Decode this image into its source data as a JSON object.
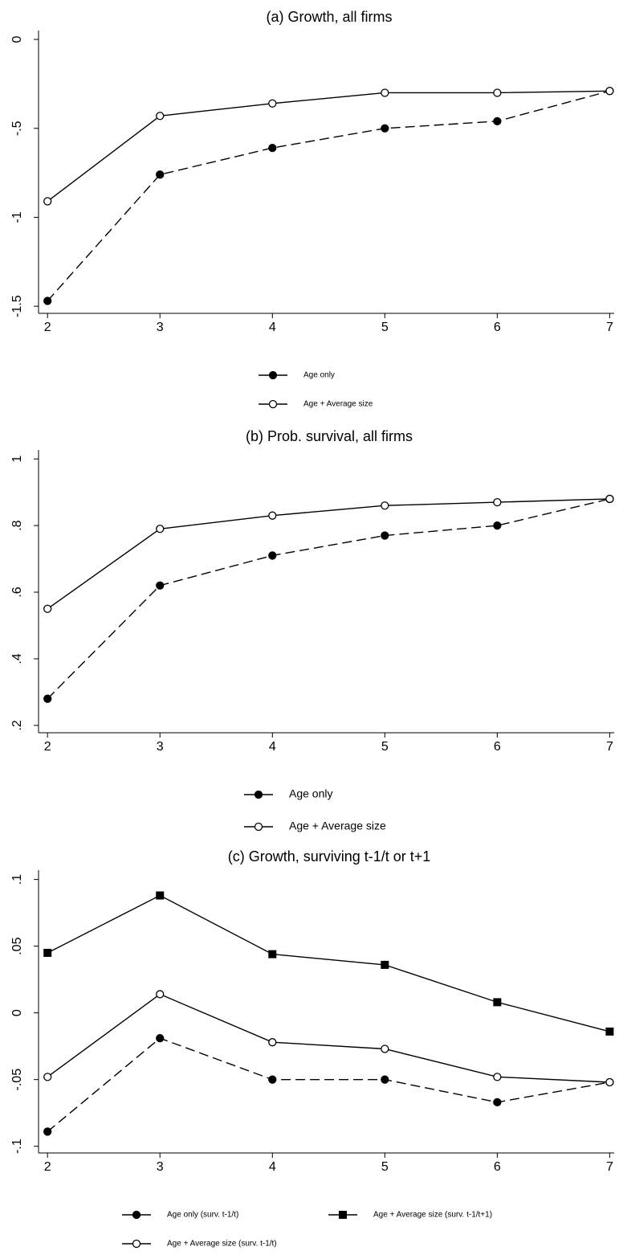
{
  "chart_data": [
    {
      "type": "line",
      "title": "(a) Growth, all firms",
      "x": [
        2,
        3,
        4,
        5,
        6,
        7
      ],
      "xlim": [
        1.92,
        7.04
      ],
      "xticks": [
        2,
        3,
        4,
        5,
        6,
        7
      ],
      "ylim": [
        -1.54,
        0.05
      ],
      "yticks": [
        0,
        {
          "value": -0.5,
          "label": "-.5"
        },
        -1,
        {
          "value": -1.5,
          "label": "-1.5"
        }
      ],
      "series": [
        {
          "name": "Age only",
          "color": "#000000",
          "dashed": true,
          "marker": "circle-filled",
          "values": [
            -1.47,
            -0.76,
            -0.61,
            -0.5,
            -0.46,
            -0.29
          ]
        },
        {
          "name": "Age + Average size",
          "color": "#000000",
          "dashed": false,
          "marker": "circle-hollow",
          "values": [
            -0.91,
            -0.43,
            -0.36,
            -0.3,
            -0.3,
            -0.29
          ]
        }
      ]
    },
    {
      "type": "line",
      "title": "(b) Prob. survival, all firms",
      "x": [
        2,
        3,
        4,
        5,
        6,
        7
      ],
      "xlim": [
        1.92,
        7.04
      ],
      "xticks": [
        2,
        3,
        4,
        5,
        6,
        7
      ],
      "ylim": [
        0.178,
        1.027
      ],
      "yticks": [
        {
          "value": 0.2,
          "label": ".2"
        },
        {
          "value": 0.4,
          "label": ".4"
        },
        {
          "value": 0.6,
          "label": ".6"
        },
        {
          "value": 0.8,
          "label": ".8"
        },
        1
      ],
      "series": [
        {
          "name": "Age only",
          "color": "#000000",
          "dashed": true,
          "marker": "circle-filled",
          "values": [
            0.28,
            0.62,
            0.71,
            0.77,
            0.8,
            0.88
          ]
        },
        {
          "name": "Age + Average size",
          "color": "#000000",
          "dashed": false,
          "marker": "circle-hollow",
          "values": [
            0.55,
            0.79,
            0.83,
            0.86,
            0.87,
            0.88
          ]
        }
      ]
    },
    {
      "type": "line",
      "title": "(c) Growth, surviving t-1/t or t+1",
      "x": [
        2,
        3,
        4,
        5,
        6,
        7
      ],
      "xlim": [
        1.92,
        7.04
      ],
      "xticks": [
        2,
        3,
        4,
        5,
        6,
        7
      ],
      "ylim": [
        -0.105,
        0.107
      ],
      "yticks": [
        {
          "value": -0.1,
          "label": "-.1"
        },
        {
          "value": -0.05,
          "label": "-.05"
        },
        0,
        {
          "value": 0.05,
          "label": ".05"
        },
        {
          "value": 0.1,
          "label": ".1"
        }
      ],
      "series": [
        {
          "name": "Age only (surv. t-1/t)",
          "color": "#000000",
          "dashed": true,
          "marker": "circle-filled",
          "values": [
            -0.089,
            -0.019,
            -0.05,
            -0.05,
            -0.067,
            -0.052
          ]
        },
        {
          "name": "Age + Average size (surv. t-1/t+1)",
          "color": "#000000",
          "dashed": false,
          "marker": "square",
          "values": [
            0.045,
            0.088,
            0.044,
            0.036,
            0.008,
            -0.014
          ]
        },
        {
          "name": "Age + Average size (surv. t-1/t)",
          "color": "#000000",
          "dashed": false,
          "marker": "circle-hollow",
          "values": [
            -0.048,
            0.014,
            -0.022,
            -0.027,
            -0.048,
            -0.052
          ]
        }
      ]
    }
  ]
}
